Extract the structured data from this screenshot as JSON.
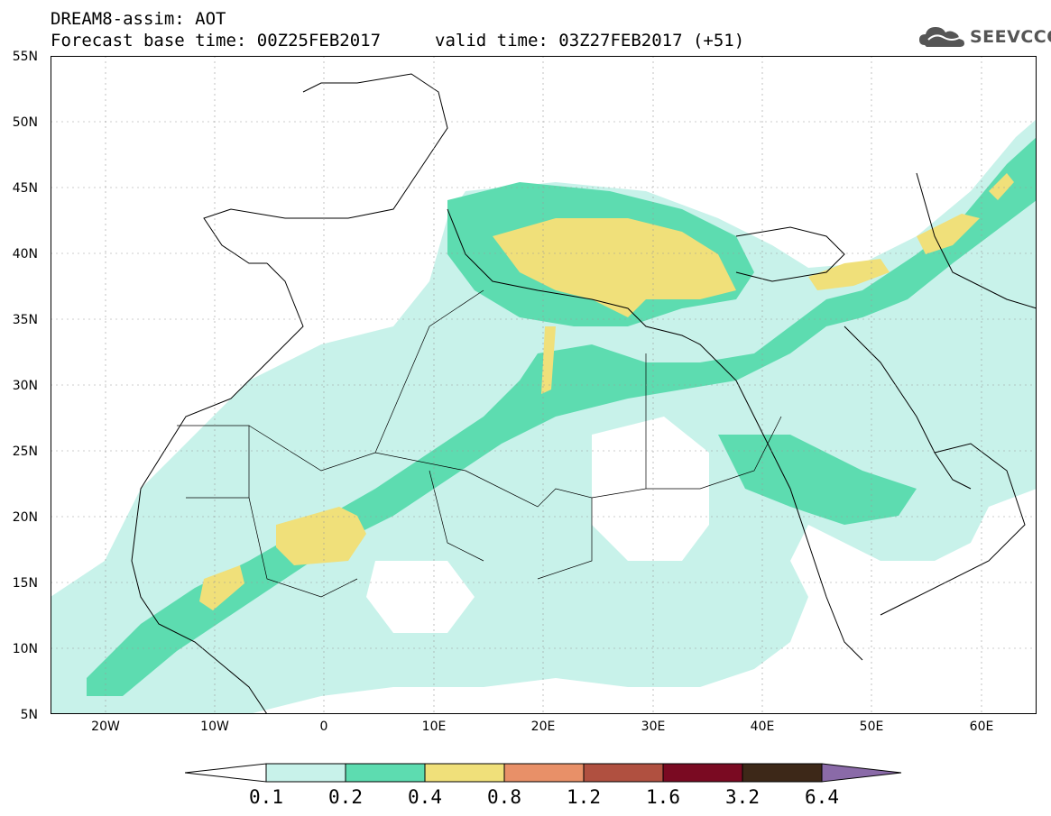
{
  "header": {
    "line1": "DREAM8-assim: AOT",
    "base_time": "Forecast base time: 00Z25FEB2017",
    "valid_time": "valid time: 03Z27FEB2017 (+51)"
  },
  "logo": {
    "text": "SEEVCCC",
    "icon": "cloud-icon"
  },
  "axes": {
    "lat_labels": [
      "55N",
      "50N",
      "45N",
      "40N",
      "35N",
      "30N",
      "25N",
      "20N",
      "15N",
      "10N",
      "5N"
    ],
    "lon_labels": [
      "20W",
      "10W",
      "0",
      "10E",
      "20E",
      "30E",
      "40E",
      "50E",
      "60E"
    ],
    "lon_range": [
      -25,
      65
    ],
    "lat_range": [
      5,
      55
    ],
    "grid": "dotted"
  },
  "legend": {
    "ticks": [
      "0.1",
      "0.2",
      "0.4",
      "0.8",
      "1.2",
      "1.6",
      "3.2",
      "6.4"
    ],
    "colors": [
      "#ffffff",
      "#c8f2ea",
      "#5ddcb0",
      "#f0e07a",
      "#e89068",
      "#b05040",
      "#7a0a22",
      "#3d2818",
      "#8a6aa8"
    ]
  }
}
